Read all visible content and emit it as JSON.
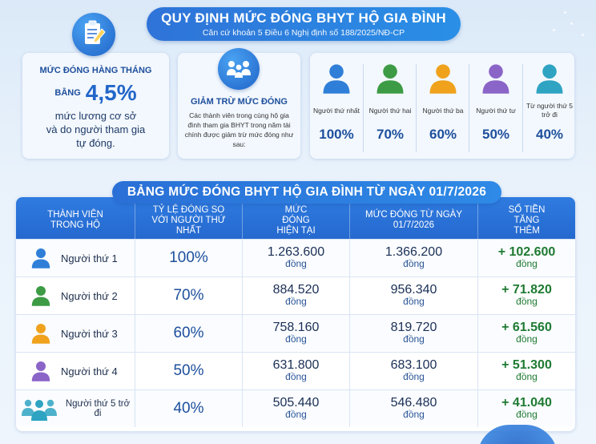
{
  "header": {
    "title": "QUY ĐỊNH MỨC ĐÓNG BHYT HỘ GIA ĐÌNH",
    "subtitle": "Căn cứ khoản 5 Điều 6 Nghị định số 188/2025/NĐ-CP"
  },
  "monthly": {
    "heading": "MỨC ĐÓNG HÀNG THÁNG",
    "prefix": "BẰNG",
    "rate": "4,5%",
    "line1": "mức lương cơ sở",
    "line2": "và do người tham gia",
    "line3": "tự đóng."
  },
  "reduction": {
    "heading": "GIẢM TRỪ MỨC ĐÓNG",
    "text": "Các thành viên trong cùng hộ gia đình tham gia BHYT trong năm tài chính được giảm trừ mức đóng như sau:"
  },
  "members": [
    {
      "label": "Người thứ nhất",
      "pct": "100%",
      "color": "#2f7fd8"
    },
    {
      "label": "Người thứ hai",
      "pct": "70%",
      "color": "#3d9b45"
    },
    {
      "label": "Người thứ ba",
      "pct": "60%",
      "color": "#f0a21d"
    },
    {
      "label": "Người thứ tư",
      "pct": "50%",
      "color": "#8b64c8"
    },
    {
      "label": "Từ người thứ 5 trở đi",
      "pct": "40%",
      "color": "#2fa3c2"
    }
  ],
  "table": {
    "title": "BẢNG MỨC ĐÓNG BHYT HỘ GIA ĐÌNH TỪ NGÀY 01/7/2026",
    "headers": {
      "member": "THÀNH VIÊN TRONG HỘ",
      "ratio": "TỶ LỆ ĐÓNG SO VỚI NGƯỜI THỨ NHẤT",
      "current": "MỨC ĐÓNG HIỆN TẠI",
      "new": "MỨC ĐÓNG TỪ NGÀY 01/7/2026",
      "increase": "SỐ TIỀN TĂNG THÊM"
    },
    "unit": "đồng",
    "rows": [
      {
        "member": "Người thứ 1",
        "ratio": "100%",
        "current": "1.263.600",
        "new": "1.366.200",
        "increase": "+ 102.600",
        "color": "#2f7fd8"
      },
      {
        "member": "Người thứ 2",
        "ratio": "70%",
        "current": "884.520",
        "new": "956.340",
        "increase": "+ 71.820",
        "color": "#3d9b45"
      },
      {
        "member": "Người thứ 3",
        "ratio": "60%",
        "current": "758.160",
        "new": "819.720",
        "increase": "+ 61.560",
        "color": "#f0a21d"
      },
      {
        "member": "Người thứ 4",
        "ratio": "50%",
        "current": "631.800",
        "new": "683.100",
        "increase": "+ 51.300",
        "color": "#8b64c8"
      },
      {
        "member": "Người thứ 5 trở đi",
        "ratio": "40%",
        "current": "505.440",
        "new": "546.480",
        "increase": "+ 41.040",
        "color": "#2fa3c2"
      }
    ]
  }
}
